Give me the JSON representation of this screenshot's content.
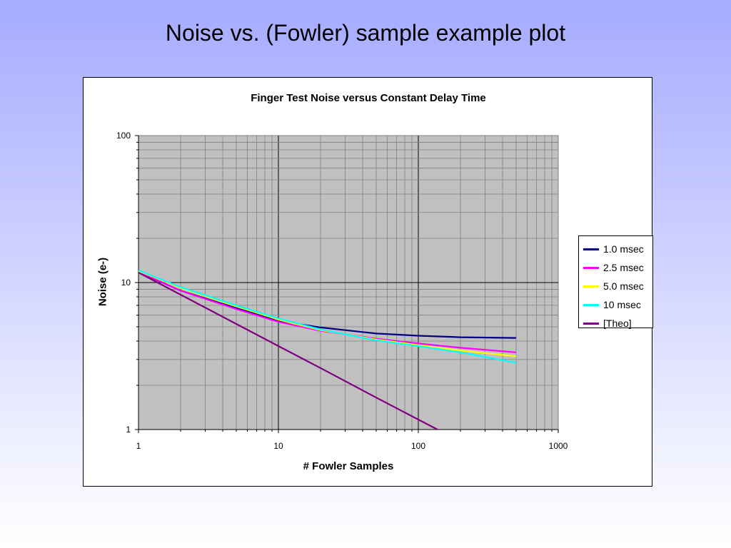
{
  "slide": {
    "title": "Noise vs. (Fowler) sample example plot"
  },
  "chart_data": {
    "type": "line",
    "title": "Finger Test Noise versus Constant Delay Time",
    "xlabel": "# Fowler Samples",
    "ylabel": "Noise (e-)",
    "x_scale": "log",
    "y_scale": "log",
    "xlim": [
      1,
      1000
    ],
    "ylim": [
      1,
      100
    ],
    "x_ticks": [
      "1",
      "10",
      "100",
      "1000"
    ],
    "y_ticks": [
      "1",
      "10",
      "100"
    ],
    "grid": true,
    "plot_background": "#c0c0c0",
    "legend_position": "right",
    "series": [
      {
        "name": "1.0 msec",
        "color": "#000080",
        "points": [
          [
            1,
            11.8
          ],
          [
            2,
            8.8
          ],
          [
            5,
            6.7
          ],
          [
            10,
            5.5
          ],
          [
            20,
            4.95
          ],
          [
            50,
            4.5
          ],
          [
            100,
            4.35
          ],
          [
            200,
            4.25
          ],
          [
            500,
            4.2
          ]
        ]
      },
      {
        "name": "2.5 msec",
        "color": "#ff00ff",
        "points": [
          [
            1,
            11.9
          ],
          [
            2,
            8.8
          ],
          [
            5,
            6.6
          ],
          [
            10,
            5.4
          ],
          [
            20,
            4.7
          ],
          [
            50,
            4.15
          ],
          [
            100,
            3.85
          ],
          [
            200,
            3.6
          ],
          [
            500,
            3.35
          ]
        ]
      },
      {
        "name": "5.0 msec",
        "color": "#ffff00",
        "points": [
          [
            1,
            12.0
          ],
          [
            2,
            9.2
          ],
          [
            5,
            6.9
          ],
          [
            10,
            5.6
          ],
          [
            20,
            4.75
          ],
          [
            50,
            4.1
          ],
          [
            100,
            3.75
          ],
          [
            200,
            3.45
          ],
          [
            500,
            3.15
          ]
        ]
      },
      {
        "name": "10 msec",
        "color": "#00ffff",
        "points": [
          [
            1,
            12.1
          ],
          [
            2,
            9.3
          ],
          [
            5,
            7.0
          ],
          [
            10,
            5.7
          ],
          [
            20,
            4.8
          ],
          [
            50,
            4.05
          ],
          [
            100,
            3.7
          ],
          [
            200,
            3.35
          ],
          [
            500,
            2.85
          ]
        ]
      },
      {
        "name": "[Theo]",
        "color": "#800080",
        "points": [
          [
            1,
            11.7
          ],
          [
            2,
            8.27
          ],
          [
            5,
            5.23
          ],
          [
            10,
            3.7
          ],
          [
            20,
            2.62
          ],
          [
            50,
            1.65
          ],
          [
            100,
            1.17
          ],
          [
            140,
            0.99
          ]
        ]
      }
    ]
  }
}
